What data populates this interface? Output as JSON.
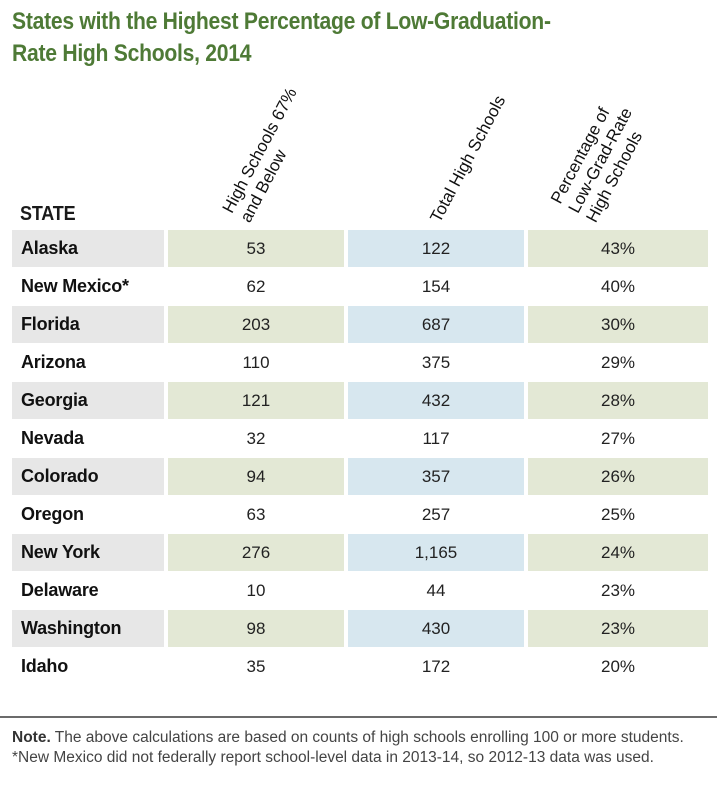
{
  "title_lines": [
    "States with the Highest Percentage of Low-Graduation-",
    "Rate High Schools, 2014"
  ],
  "chart_data": {
    "type": "table",
    "title": "States with the Highest Percentage of Low-Graduation-Rate High Schools, 2014",
    "columns": {
      "state": "STATE",
      "low_lines": [
        "High Schools 67%",
        "and Below"
      ],
      "total_lines": [
        "Total High Schools"
      ],
      "pct_lines": [
        "Percentage of",
        "Low-Grad-Rate",
        "High Schools"
      ]
    },
    "rows": [
      {
        "state": "Alaska",
        "low": "53",
        "total": "122",
        "pct": "43%",
        "shaded": true
      },
      {
        "state": "New Mexico*",
        "low": "62",
        "total": "154",
        "pct": "40%",
        "shaded": false
      },
      {
        "state": "Florida",
        "low": "203",
        "total": "687",
        "pct": "30%",
        "shaded": true
      },
      {
        "state": "Arizona",
        "low": "110",
        "total": "375",
        "pct": "29%",
        "shaded": false
      },
      {
        "state": "Georgia",
        "low": "121",
        "total": "432",
        "pct": "28%",
        "shaded": true
      },
      {
        "state": "Nevada",
        "low": "32",
        "total": "117",
        "pct": "27%",
        "shaded": false
      },
      {
        "state": "Colorado",
        "low": "94",
        "total": "357",
        "pct": "26%",
        "shaded": true
      },
      {
        "state": "Oregon",
        "low": "63",
        "total": "257",
        "pct": "25%",
        "shaded": false
      },
      {
        "state": "New York",
        "low": "276",
        "total": "1,165",
        "pct": "24%",
        "shaded": true
      },
      {
        "state": "Delaware",
        "low": "10",
        "total": "44",
        "pct": "23%",
        "shaded": false
      },
      {
        "state": "Washington",
        "low": "98",
        "total": "430",
        "pct": "23%",
        "shaded": true
      },
      {
        "state": "Idaho",
        "low": "35",
        "total": "172",
        "pct": "20%",
        "shaded": false
      }
    ]
  },
  "note": {
    "label": "Note.",
    "text": " The above calculations are based on counts of high schools enrolling 100 or more students.",
    "footnote": "*New Mexico did not federally report school-level data in 2013-14, so 2012-13 data was used."
  },
  "colors": {
    "title": "#4e7a36",
    "state_shade": "#e7e7e7",
    "green_shade": "#e3e8d5",
    "blue_shade": "#d7e7ef"
  }
}
